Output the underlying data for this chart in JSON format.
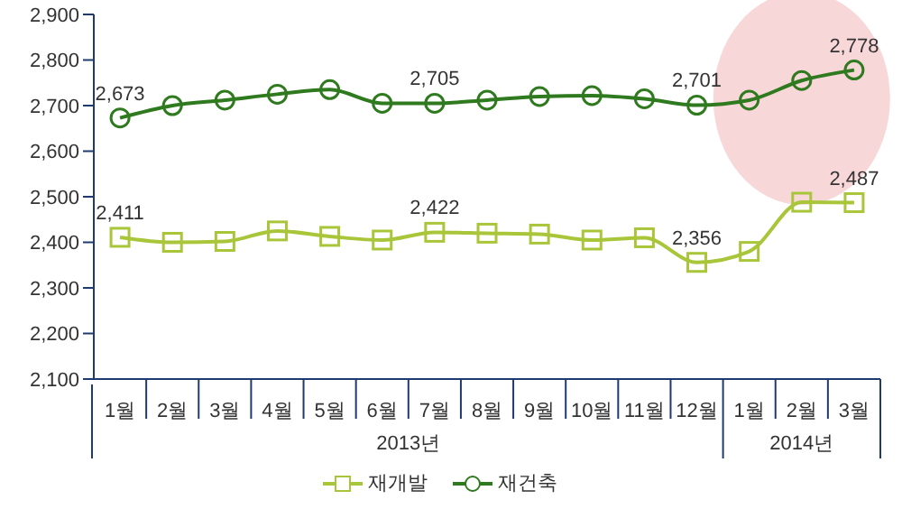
{
  "chart_data": {
    "type": "line",
    "categories": [
      "1월",
      "2월",
      "3월",
      "4월",
      "5월",
      "6월",
      "7월",
      "8월",
      "9월",
      "10월",
      "11월",
      "12월",
      "1월",
      "2월",
      "3월"
    ],
    "annotations": [
      "2013년",
      "2014년"
    ],
    "series": [
      {
        "name": "재개발",
        "color": "#a9c63a",
        "marker": "square",
        "values": [
          2411,
          2400,
          2402,
          2425,
          2413,
          2405,
          2422,
          2420,
          2418,
          2405,
          2410,
          2356,
          2380,
          2488,
          2487
        ],
        "value_labels": [
          "2,411",
          null,
          null,
          null,
          null,
          null,
          "2,422",
          null,
          null,
          null,
          null,
          "2,356",
          null,
          null,
          "2,487"
        ]
      },
      {
        "name": "재건축",
        "color": "#2f7a1f",
        "marker": "circle",
        "values": [
          2673,
          2700,
          2712,
          2725,
          2735,
          2705,
          2705,
          2712,
          2720,
          2722,
          2715,
          2701,
          2712,
          2755,
          2778
        ],
        "value_labels": [
          "2,673",
          null,
          null,
          null,
          null,
          null,
          "2,705",
          null,
          null,
          null,
          null,
          "2,701",
          null,
          null,
          "2,778"
        ]
      }
    ],
    "ylim": [
      2100,
      2900
    ],
    "yticks": [
      {
        "value": 2100,
        "label": "2,100"
      },
      {
        "value": 2200,
        "label": "2,200"
      },
      {
        "value": 2300,
        "label": "2,300"
      },
      {
        "value": 2400,
        "label": "2,400"
      },
      {
        "value": 2500,
        "label": "2,500"
      },
      {
        "value": 2600,
        "label": "2,600"
      },
      {
        "value": 2700,
        "label": "2,700"
      },
      {
        "value": 2800,
        "label": "2,800"
      },
      {
        "value": 2900,
        "label": "2,900"
      }
    ],
    "grid": false,
    "legend": "bottom"
  }
}
